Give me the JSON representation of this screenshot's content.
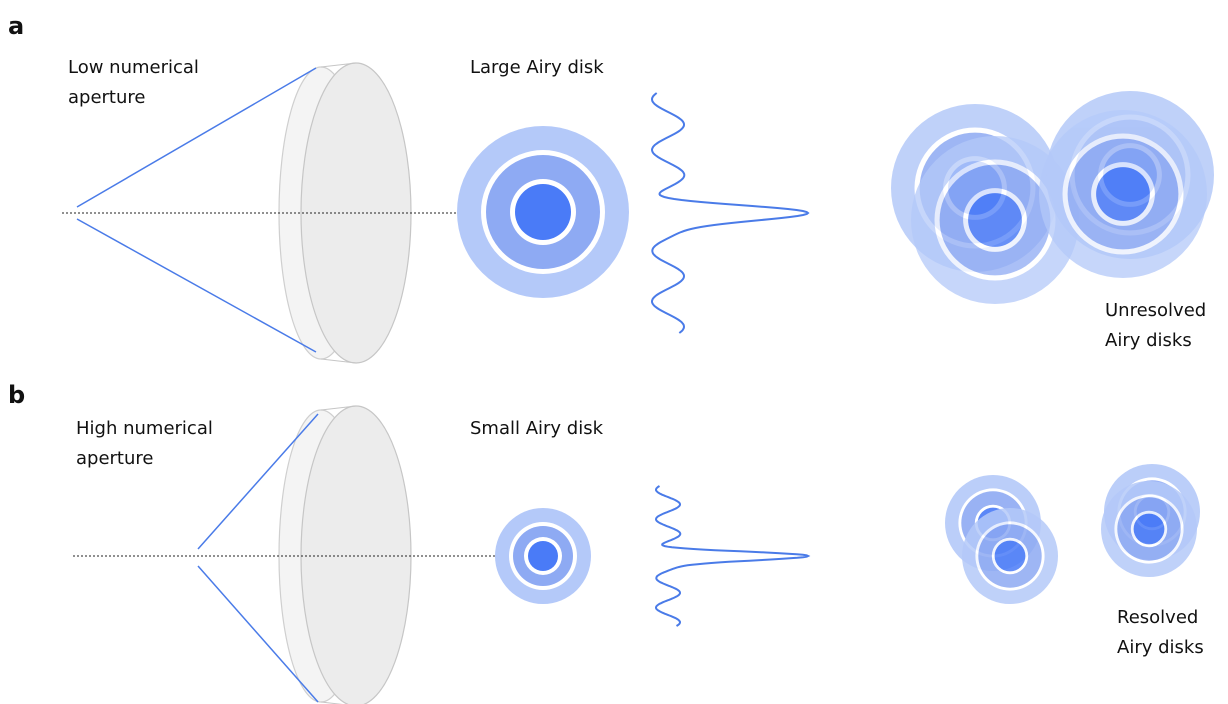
{
  "colors": {
    "beam": "#4a7be8",
    "core": "#4a7bf7",
    "ring_inner": "#8eaaf3",
    "ring_outer": "#b4c9f9",
    "lens_fill": "#efefef",
    "lens_stroke": "#c8c8c8",
    "axis": "#222222"
  },
  "panels": [
    {
      "letter": "a",
      "aperture_label_lines": [
        "Low numerical",
        "aperture"
      ],
      "disk_label": "Large Airy disk",
      "pair_label_lines": [
        "Unresolved",
        "Airy disks"
      ]
    },
    {
      "letter": "b",
      "aperture_label_lines": [
        "High numerical",
        "aperture"
      ],
      "disk_label": "Small Airy disk",
      "pair_label_lines": [
        "Resolved",
        "Airy disks"
      ]
    }
  ]
}
